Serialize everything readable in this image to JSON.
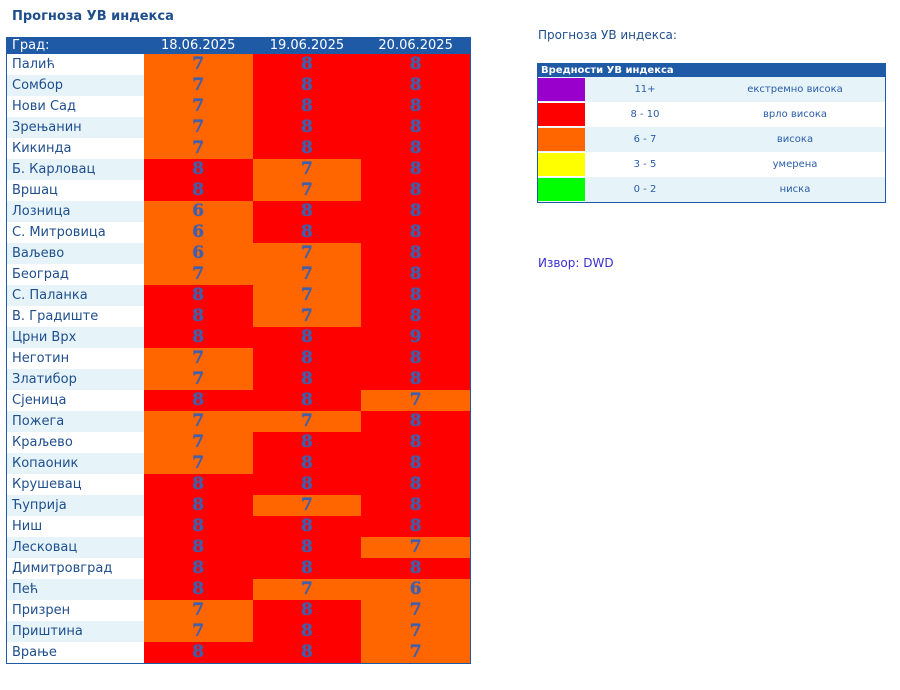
{
  "page_title": "Прогноза УВ индекса",
  "table": {
    "headers": [
      "Град:",
      "18.06.2025",
      "19.06.2025",
      "20.06.2025"
    ],
    "rows": [
      {
        "city": "Палић",
        "values": [
          7,
          8,
          8
        ]
      },
      {
        "city": "Сомбор",
        "values": [
          7,
          8,
          8
        ]
      },
      {
        "city": "Нови Сад",
        "values": [
          7,
          8,
          8
        ]
      },
      {
        "city": "Зрењанин",
        "values": [
          7,
          8,
          8
        ]
      },
      {
        "city": "Кикинда",
        "values": [
          7,
          8,
          8
        ]
      },
      {
        "city": "Б. Карловац",
        "values": [
          8,
          7,
          8
        ]
      },
      {
        "city": "Вршац",
        "values": [
          8,
          7,
          8
        ]
      },
      {
        "city": "Лозница",
        "values": [
          6,
          8,
          8
        ]
      },
      {
        "city": "С. Митровица",
        "values": [
          6,
          8,
          8
        ]
      },
      {
        "city": "Ваљево",
        "values": [
          6,
          7,
          8
        ]
      },
      {
        "city": "Београд",
        "values": [
          7,
          7,
          8
        ]
      },
      {
        "city": "С. Паланка",
        "values": [
          8,
          7,
          8
        ]
      },
      {
        "city": "В. Градиште",
        "values": [
          8,
          7,
          8
        ]
      },
      {
        "city": "Црни Врх",
        "values": [
          8,
          8,
          9
        ]
      },
      {
        "city": "Неготин",
        "values": [
          7,
          8,
          8
        ]
      },
      {
        "city": "Златибор",
        "values": [
          7,
          8,
          8
        ]
      },
      {
        "city": "Сјеница",
        "values": [
          8,
          8,
          7
        ]
      },
      {
        "city": "Пожега",
        "values": [
          7,
          7,
          8
        ]
      },
      {
        "city": "Краљево",
        "values": [
          7,
          8,
          8
        ]
      },
      {
        "city": "Копаоник",
        "values": [
          7,
          8,
          8
        ]
      },
      {
        "city": "Крушевац",
        "values": [
          8,
          8,
          8
        ]
      },
      {
        "city": "Ћуприја",
        "values": [
          8,
          7,
          8
        ]
      },
      {
        "city": "Ниш",
        "values": [
          8,
          8,
          8
        ]
      },
      {
        "city": "Лесковац",
        "values": [
          8,
          8,
          7
        ]
      },
      {
        "city": "Димитровград",
        "values": [
          8,
          8,
          8
        ]
      },
      {
        "city": "Пећ",
        "values": [
          8,
          7,
          6
        ]
      },
      {
        "city": "Призрен",
        "values": [
          7,
          8,
          7
        ]
      },
      {
        "city": "Приштина",
        "values": [
          7,
          8,
          7
        ]
      },
      {
        "city": "Врање",
        "values": [
          8,
          8,
          7
        ]
      }
    ]
  },
  "legend": {
    "title": "Прогноза УВ индекса:",
    "header": "Вредности УВ индекса",
    "levels": [
      {
        "range": "11+",
        "label": "екстремно висока",
        "color": "#9900cc",
        "min": 11,
        "max": 99
      },
      {
        "range": "8 - 10",
        "label": "врло висока",
        "color": "#ff0000",
        "min": 8,
        "max": 10
      },
      {
        "range": "6 - 7",
        "label": "висока",
        "color": "#ff6600",
        "min": 6,
        "max": 7
      },
      {
        "range": "3 - 5",
        "label": "умерена",
        "color": "#ffff00",
        "min": 3,
        "max": 5
      },
      {
        "range": "0 - 2",
        "label": "ниска",
        "color": "#00ff00",
        "min": 0,
        "max": 2
      }
    ]
  },
  "source": "Извор: DWD"
}
